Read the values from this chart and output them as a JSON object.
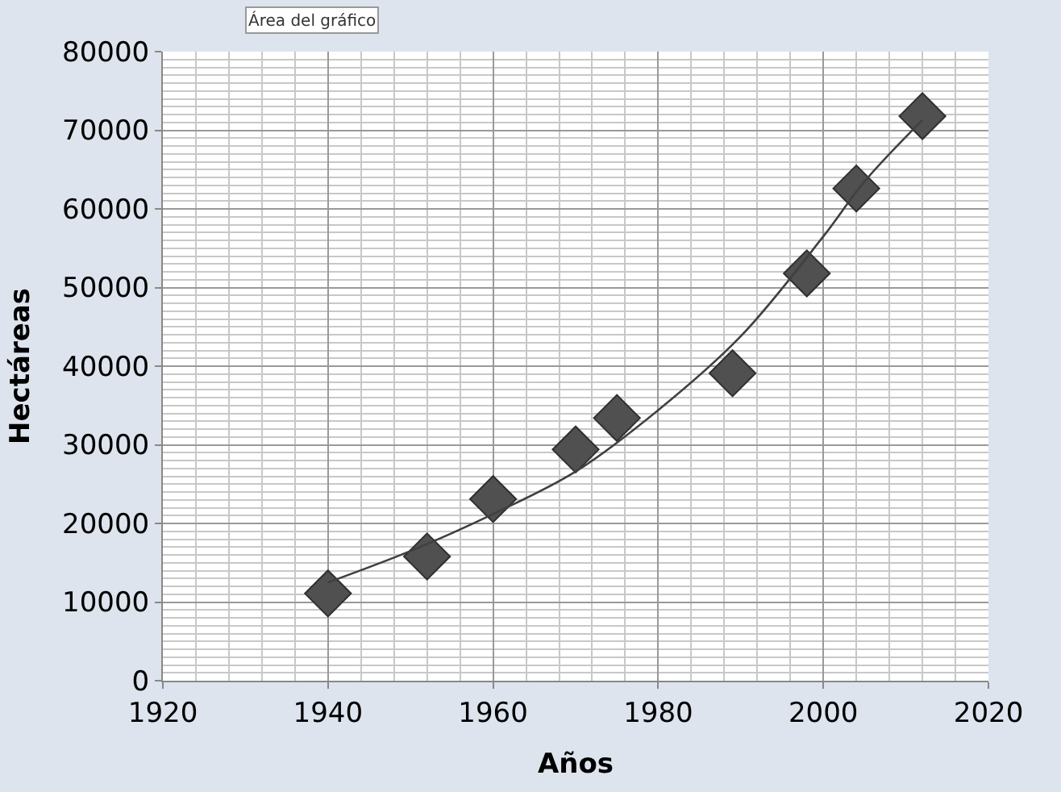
{
  "chart_data": {
    "type": "scatter",
    "xlabel": "Años",
    "ylabel": "Hectáreas",
    "annotations": [
      "Área del gráfico"
    ],
    "series": [
      {
        "color": "#505050",
        "marker": "diamond",
        "x": [
          1940,
          1952,
          1960,
          1970,
          1975,
          1989,
          1998,
          2004,
          2012
        ],
        "values": [
          11100,
          15800,
          23100,
          29400,
          33400,
          39100,
          51800,
          62600,
          71800
        ]
      },
      {
        "type": "line",
        "color": "#404040",
        "marker": "none",
        "x": [
          1940,
          1950,
          1960,
          1970,
          1980,
          1990,
          2000,
          2005,
          2012
        ],
        "values": [
          12500,
          16500,
          21200,
          26600,
          34400,
          43800,
          56500,
          63500,
          71300
        ]
      }
    ],
    "xlim": [
      1920,
      2020
    ],
    "xticks": [
      1920,
      1940,
      1960,
      1980,
      2000,
      2020
    ],
    "ylim": [
      0,
      80000
    ],
    "yticks": [
      0,
      10000,
      20000,
      30000,
      40000,
      50000,
      60000,
      70000,
      80000
    ],
    "grid": true
  }
}
